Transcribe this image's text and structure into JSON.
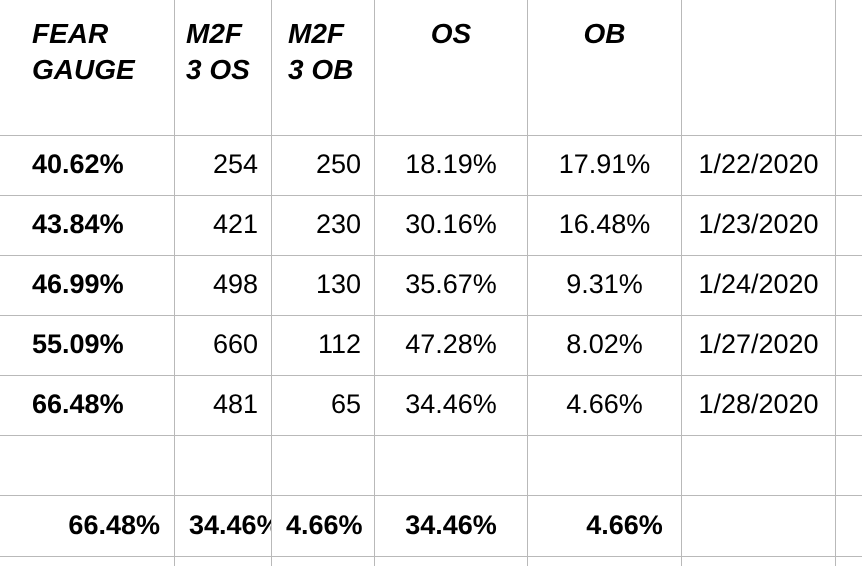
{
  "headers": [
    "FEAR\nGAUGE",
    "M2F\n3 OS",
    "M2F\n3 OB",
    "OS",
    "OB",
    ""
  ],
  "rows": [
    [
      "40.62%",
      "254",
      "250",
      "18.19%",
      "17.91%",
      "1/22/2020"
    ],
    [
      "43.84%",
      "421",
      "230",
      "30.16%",
      "16.48%",
      "1/23/2020"
    ],
    [
      "46.99%",
      "498",
      "130",
      "35.67%",
      "9.31%",
      "1/24/2020"
    ],
    [
      "55.09%",
      "660",
      "112",
      "47.28%",
      "8.02%",
      "1/27/2020"
    ],
    [
      "66.48%",
      "481",
      "65",
      "34.46%",
      "4.66%",
      "1/28/2020"
    ]
  ],
  "summary": [
    "66.48%",
    "34.46%",
    "4.66%",
    "34.46%",
    "4.66%",
    ""
  ]
}
